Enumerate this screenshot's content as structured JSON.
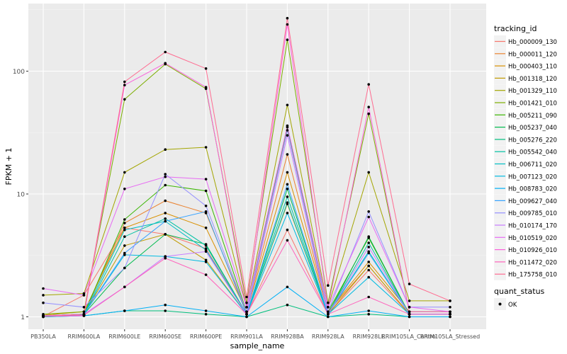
{
  "chart_data": {
    "type": "line",
    "xlabel": "sample_name",
    "ylabel": "FPKM + 1",
    "yscale": "log10",
    "ylim": [
      0.9,
      280
    ],
    "yticks": [
      1,
      10,
      100
    ],
    "ytick_labels": [
      "1",
      "10",
      "100"
    ],
    "grid": true,
    "legend_position": "right",
    "categories": [
      "PB350LA",
      "RRIM600LA",
      "RRIM600LE",
      "RRIM600SE",
      "RRIM600PE",
      "RRIM901LA",
      "RRIM928BA",
      "RRIM928LA",
      "RRIM928LE",
      "RRIM105LA_Control",
      "RRIM105LA_Stressed"
    ],
    "legend": {
      "title": "tracking_id",
      "entries": [
        "Hb_000009_130",
        "Hb_000011_120",
        "Hb_000403_110",
        "Hb_001318_120",
        "Hb_001329_110",
        "Hb_001421_010",
        "Hb_005211_090",
        "Hb_005237_040",
        "Hb_005276_220",
        "Hb_005542_040",
        "Hb_006711_020",
        "Hb_007123_020",
        "Hb_008783_020",
        "Hb_009627_040",
        "Hb_009785_010",
        "Hb_010174_170",
        "Hb_010519_020",
        "Hb_010926_010",
        "Hb_011472_020",
        "Hb_175758_010"
      ]
    },
    "legend2": {
      "title": "quant_status",
      "entries": [
        "OK"
      ]
    },
    "series": [
      {
        "name": "Hb_000009_130",
        "color": "#F8766D",
        "values": [
          1.01,
          1.5,
          5.3,
          4.7,
          3.6,
          1.05,
          5.1,
          1.05,
          2.4,
          1.05,
          1.05
        ]
      },
      {
        "name": "Hb_000011_120",
        "color": "#EA8331",
        "values": [
          1.02,
          1.05,
          5.8,
          8.8,
          7.0,
          1.1,
          21.0,
          1.1,
          2.6,
          1.05,
          1.05
        ]
      },
      {
        "name": "Hb_000403_110",
        "color": "#D89000",
        "values": [
          1.03,
          1.1,
          5.3,
          7.0,
          5.3,
          1.1,
          15.0,
          1.1,
          2.8,
          1.1,
          1.1
        ]
      },
      {
        "name": "Hb_001318_120",
        "color": "#C09B00",
        "values": [
          1.02,
          1.05,
          3.8,
          4.7,
          2.9,
          1.05,
          8.3,
          1.05,
          2.6,
          1.05,
          1.05
        ]
      },
      {
        "name": "Hb_001329_110",
        "color": "#A3A500",
        "values": [
          1.5,
          1.55,
          15.0,
          23.0,
          24.0,
          1.2,
          53.0,
          1.2,
          15.0,
          1.35,
          1.35
        ]
      },
      {
        "name": "Hb_001421_010",
        "color": "#7CAE00",
        "values": [
          1.05,
          1.1,
          59.0,
          114.0,
          72.0,
          1.3,
          180.0,
          1.3,
          45.0,
          1.1,
          1.1
        ]
      },
      {
        "name": "Hb_005211_090",
        "color": "#39B600",
        "values": [
          1.02,
          1.05,
          6.2,
          11.8,
          10.6,
          1.1,
          35.0,
          1.1,
          4.4,
          1.05,
          1.05
        ]
      },
      {
        "name": "Hb_005237_040",
        "color": "#00BB4E",
        "values": [
          1.0,
          1.05,
          2.5,
          4.7,
          3.9,
          1.05,
          11.0,
          1.05,
          4.5,
          1.05,
          1.05
        ]
      },
      {
        "name": "Hb_005276_220",
        "color": "#00BF7D",
        "values": [
          1.0,
          1.02,
          1.12,
          1.12,
          1.05,
          1.0,
          1.25,
          1.0,
          1.05,
          1.0,
          1.0
        ]
      },
      {
        "name": "Hb_005542_040",
        "color": "#00C1A3",
        "values": [
          1.01,
          1.03,
          4.5,
          6.3,
          3.8,
          1.05,
          9.5,
          1.05,
          4.0,
          1.05,
          1.05
        ]
      },
      {
        "name": "Hb_006711_020",
        "color": "#00BFC4",
        "values": [
          1.01,
          1.04,
          5.1,
          6.0,
          3.5,
          1.05,
          8.5,
          1.05,
          3.4,
          1.05,
          1.05
        ]
      },
      {
        "name": "Hb_007123_020",
        "color": "#00BAE0",
        "values": [
          1.02,
          1.05,
          3.2,
          3.1,
          2.8,
          1.05,
          7.0,
          1.05,
          2.1,
          1.05,
          1.05
        ]
      },
      {
        "name": "Hb_008783_020",
        "color": "#00B0F6",
        "values": [
          1.0,
          1.02,
          1.12,
          1.25,
          1.12,
          1.0,
          1.75,
          1.0,
          1.12,
          1.0,
          1.0
        ]
      },
      {
        "name": "Hb_009627_040",
        "color": "#35A2FF",
        "values": [
          1.02,
          1.05,
          3.3,
          6.0,
          7.2,
          1.05,
          12.0,
          1.05,
          3.3,
          1.05,
          1.05
        ]
      },
      {
        "name": "Hb_009785_010",
        "color": "#9590FF",
        "values": [
          1.3,
          1.2,
          2.5,
          14.5,
          8.0,
          1.1,
          33.0,
          1.1,
          7.2,
          1.2,
          1.2
        ]
      },
      {
        "name": "Hb_010174_170",
        "color": "#C77CFF",
        "values": [
          1.02,
          1.05,
          1.75,
          3.1,
          3.4,
          1.05,
          30.0,
          1.05,
          3.7,
          1.05,
          1.05
        ]
      },
      {
        "name": "Hb_010519_020",
        "color": "#E76BF3",
        "values": [
          1.7,
          1.5,
          11.0,
          13.8,
          13.2,
          1.2,
          36.0,
          1.2,
          6.5,
          1.2,
          1.1
        ]
      },
      {
        "name": "Hb_010926_010",
        "color": "#FA62DB",
        "values": [
          1.01,
          1.02,
          77.0,
          116.0,
          74.0,
          1.2,
          240.0,
          1.2,
          51.0,
          1.1,
          1.1
        ]
      },
      {
        "name": "Hb_011472_020",
        "color": "#FF62BC",
        "values": [
          1.01,
          1.03,
          1.75,
          3.0,
          2.2,
          1.05,
          4.2,
          1.05,
          1.45,
          1.05,
          1.05
        ]
      },
      {
        "name": "Hb_175758_010",
        "color": "#FF6C91",
        "values": [
          1.01,
          1.05,
          82.0,
          143.0,
          105.0,
          1.45,
          270.0,
          1.8,
          78.0,
          1.85,
          1.35
        ]
      }
    ]
  }
}
